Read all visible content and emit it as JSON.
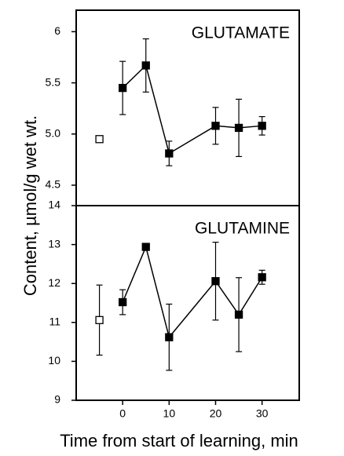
{
  "chart_data": [
    {
      "type": "line",
      "title": "GLUTAMATE",
      "ylabel": "Content, µmol/g wet wt.",
      "xlim": [
        -10,
        38
      ],
      "ylim": [
        4.3,
        6.21
      ],
      "yticks": [
        6,
        5.5,
        {
          "value": 5,
          "label": "5.0"
        },
        4.5
      ],
      "series": [
        {
          "color": "#000000",
          "marker": "filled",
          "x": [
            0,
            5,
            10,
            20,
            25,
            30
          ],
          "values": [
            5.45,
            5.67,
            4.81,
            5.08,
            5.06,
            5.08
          ],
          "errors": [
            0.26,
            0.26,
            0.12,
            0.18,
            0.28,
            0.09
          ]
        },
        {
          "color": "#000000",
          "marker": "open",
          "x": [
            -5
          ],
          "values": [
            4.95
          ],
          "errors": [
            null
          ]
        }
      ]
    },
    {
      "type": "line",
      "title": "GLUTAMINE",
      "xlabel": "Time from start of learning, min",
      "xlim": [
        -10,
        38
      ],
      "ylim": [
        9,
        14
      ],
      "xticks": [
        0,
        10,
        20,
        30
      ],
      "yticks": [
        9,
        10,
        11,
        12,
        13,
        14
      ],
      "series": [
        {
          "color": "#000000",
          "marker": "filled",
          "x": [
            0,
            5,
            10,
            20,
            25,
            30
          ],
          "values": [
            11.52,
            12.94,
            10.62,
            12.06,
            11.2,
            12.16
          ],
          "errors": [
            0.32,
            null,
            0.85,
            1.0,
            0.95,
            0.18
          ]
        },
        {
          "color": "#000000",
          "marker": "open",
          "x": [
            -5
          ],
          "values": [
            11.06
          ],
          "errors": [
            0.9
          ]
        }
      ]
    }
  ]
}
